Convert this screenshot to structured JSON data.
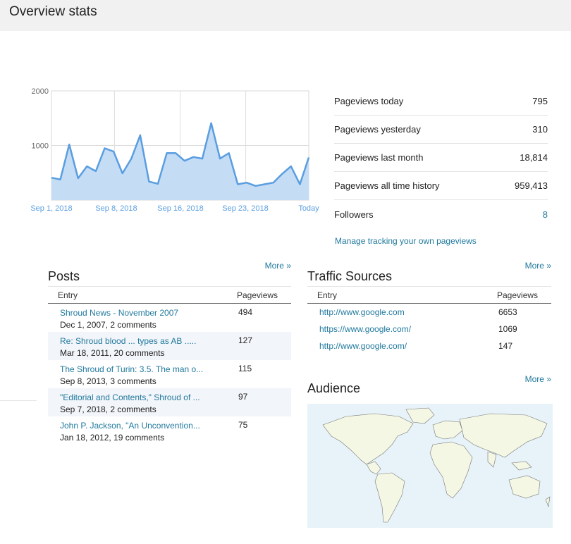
{
  "header": {
    "title": "Overview stats"
  },
  "chart_data": {
    "type": "area",
    "x_labels": [
      "Sep 1, 2018",
      "Sep 8, 2018",
      "Sep 16, 2018",
      "Sep 23, 2018",
      "Today"
    ],
    "y_ticks": [
      "2000",
      "1000"
    ],
    "ylim": [
      0,
      2000
    ],
    "values": [
      410,
      380,
      1020,
      400,
      620,
      530,
      950,
      890,
      490,
      760,
      1190,
      340,
      300,
      860,
      860,
      720,
      790,
      760,
      1410,
      760,
      860,
      290,
      320,
      260,
      290,
      320,
      480,
      620,
      290,
      780
    ],
    "color": "#5a9ee0",
    "fill": "#c5dcf5",
    "grid": true
  },
  "stats": [
    {
      "label": "Pageviews today",
      "value": "795"
    },
    {
      "label": "Pageviews yesterday",
      "value": "310"
    },
    {
      "label": "Pageviews last month",
      "value": "18,814"
    },
    {
      "label": "Pageviews all time history",
      "value": "959,413"
    },
    {
      "label": "Followers",
      "value": "8"
    }
  ],
  "manage_link": "Manage tracking your own pageviews",
  "posts": {
    "title": "Posts",
    "more": "More »",
    "col_entry": "Entry",
    "col_pageviews": "Pageviews",
    "rows": [
      {
        "title": "Shroud News - November 2007",
        "meta": "Dec 1, 2007, 2 comments",
        "views": "494"
      },
      {
        "title": "Re: Shroud blood ... types as AB .....",
        "meta": "Mar 18, 2011, 20 comments",
        "views": "127"
      },
      {
        "title": "The Shroud of Turin: 3.5. The man o...",
        "meta": "Sep 8, 2013, 3 comments",
        "views": "115"
      },
      {
        "title": "\"Editorial and Contents,\" Shroud of ...",
        "meta": "Sep 7, 2018, 2 comments",
        "views": "97"
      },
      {
        "title": "John P. Jackson, \"An Unconvention...",
        "meta": "Jan 18, 2012, 19 comments",
        "views": "75"
      }
    ]
  },
  "traffic": {
    "title": "Traffic Sources",
    "more": "More »",
    "col_entry": "Entry",
    "col_pageviews": "Pageviews",
    "rows": [
      {
        "source": "http://www.google.com",
        "views": "6653"
      },
      {
        "source": "https://www.google.com/",
        "views": "1069"
      },
      {
        "source": "http://www.google.com/",
        "views": "147"
      }
    ]
  },
  "audience": {
    "title": "Audience",
    "more": "More »"
  }
}
